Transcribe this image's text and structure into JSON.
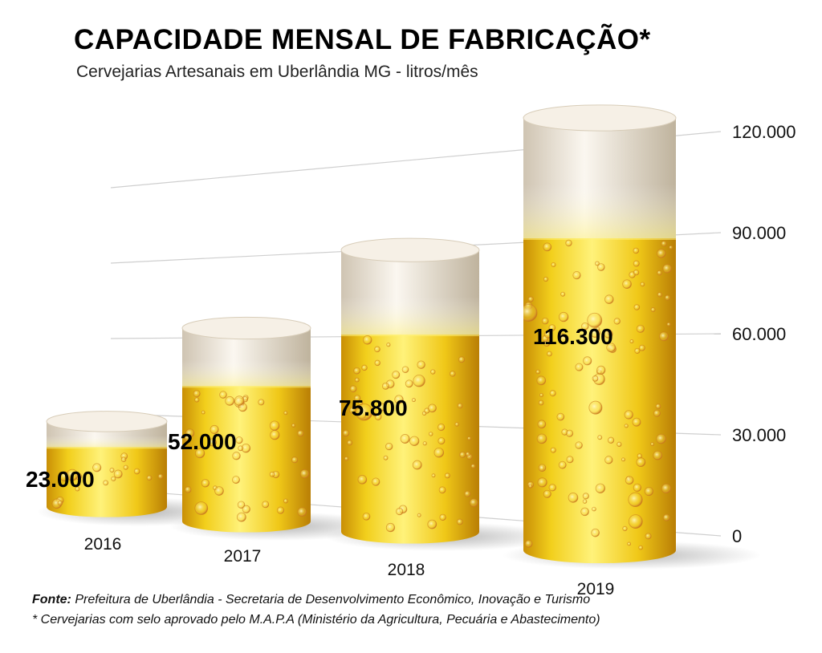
{
  "chart_data": {
    "type": "bar",
    "title": "CAPACIDADE MENSAL DE FABRICAÇÃO*",
    "subtitle": "Cervejarias Artesanais em Uberlândia MG - litros/mês",
    "categories": [
      "2016",
      "2017",
      "2018",
      "2019"
    ],
    "values": [
      23000,
      52000,
      75800,
      116300
    ],
    "value_labels": [
      "23.000",
      "52.000",
      "75.800",
      "116.300"
    ],
    "yticks": [
      0,
      30000,
      60000,
      90000,
      120000
    ],
    "ytick_labels": [
      "0",
      "30.000",
      "60.000",
      "90.000",
      "120.000"
    ],
    "ylim": [
      0,
      120000
    ],
    "grid": true,
    "colors": {
      "beer_light": "#fff27a",
      "beer_mid": "#f2cf1c",
      "beer_dark": "#c98f06",
      "foam": "#f3ece1",
      "bubble": "#d4892a"
    }
  },
  "footer": {
    "source_label": "Fonte:",
    "source_text": " Prefeitura de Uberlândia - Secretaria de Desenvolvimento Econômico, Inovação e Turismo",
    "note": "* Cervejarias com selo aprovado pelo M.A.P.A (Ministério da Agricultura, Pecuária e Abastecimento)"
  }
}
